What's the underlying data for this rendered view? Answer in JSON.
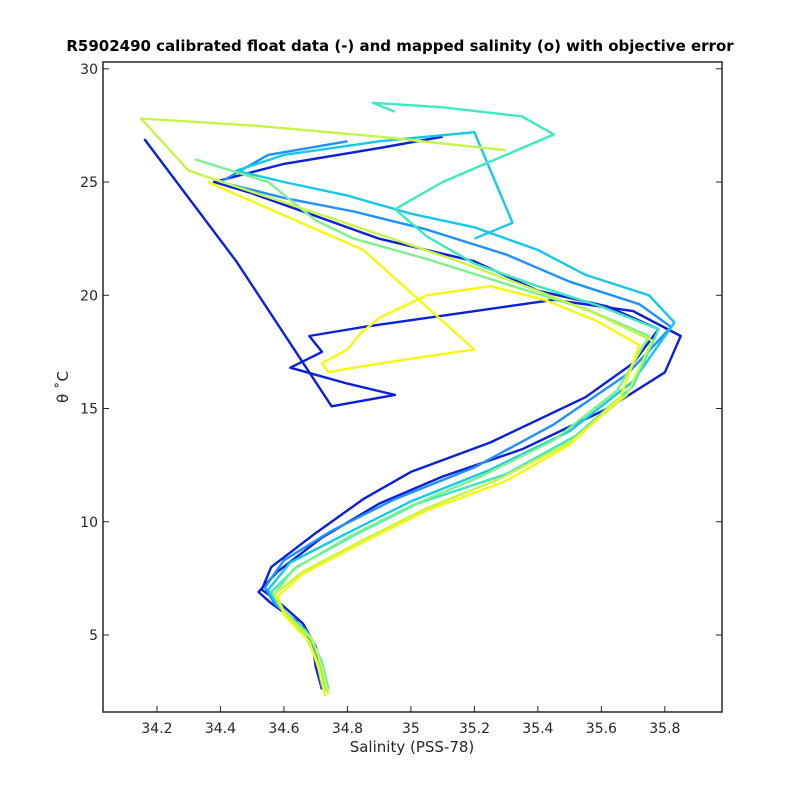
{
  "chart_data": {
    "type": "line",
    "title": "R5902490 calibrated float data (-) and mapped salinity (o) with objective error",
    "xlabel": "Salinity (PSS-78)",
    "ylabel": "θ ˚C",
    "xlim": [
      34.03,
      35.98
    ],
    "ylim": [
      1.6,
      30.3
    ],
    "xticks": [
      "34.2",
      "34.4",
      "34.6",
      "34.8",
      "35",
      "35.2",
      "35.4",
      "35.6",
      "35.8"
    ],
    "yticks": [
      "5",
      "10",
      "15",
      "20",
      "25",
      "30"
    ],
    "grid": false,
    "legend": "none",
    "colormap": [
      "#0a1fd8",
      "#1e90ff",
      "#17c8e8",
      "#3ee8c0",
      "#7cf28a",
      "#c6f548",
      "#f6f80e"
    ],
    "series": [
      {
        "color": "#0a1fd8",
        "x": [
          34.73,
          34.71,
          34.7,
          34.66,
          34.58,
          34.53,
          34.56,
          34.7,
          34.85,
          35.0,
          35.25,
          35.55,
          35.7,
          35.78,
          35.62,
          35.4,
          35.2,
          34.9,
          34.7,
          34.5,
          34.38,
          34.6,
          34.9,
          35.1
        ],
        "y": [
          2.5,
          3.5,
          4.5,
          5.5,
          6.5,
          7.0,
          8.0,
          9.5,
          11.0,
          12.2,
          13.5,
          15.5,
          17.0,
          18.5,
          19.5,
          20.2,
          21.5,
          22.5,
          23.5,
          24.5,
          25.0,
          25.8,
          26.5,
          27.0
        ]
      },
      {
        "color": "#0a1fd8",
        "x": [
          34.72,
          34.7,
          34.69,
          34.64,
          34.56,
          34.52,
          34.58,
          34.72,
          34.9,
          35.1,
          35.35,
          35.62,
          35.8,
          35.85,
          35.7,
          35.45,
          35.15,
          34.85,
          34.68,
          34.72,
          34.62,
          34.8,
          34.95,
          34.75,
          34.45,
          34.16
        ],
        "y": [
          2.6,
          3.6,
          4.6,
          5.6,
          6.4,
          6.9,
          7.8,
          9.3,
          10.8,
          12.0,
          13.2,
          15.0,
          16.6,
          18.2,
          19.3,
          19.8,
          19.2,
          18.6,
          18.2,
          17.5,
          16.8,
          16.1,
          15.6,
          15.1,
          21.5,
          26.9
        ]
      },
      {
        "color": "#1e90ff",
        "x": [
          34.72,
          34.7,
          34.66,
          34.57,
          34.54,
          34.6,
          34.75,
          34.95,
          35.2,
          35.45,
          35.68,
          35.82,
          35.72,
          35.5,
          35.3,
          35.05,
          34.82,
          34.6,
          34.4,
          34.55,
          34.8
        ],
        "y": [
          2.7,
          4.0,
          5.3,
          6.4,
          7.1,
          8.3,
          9.6,
          11.0,
          12.4,
          14.3,
          16.5,
          18.6,
          19.6,
          20.6,
          21.8,
          22.9,
          23.7,
          24.3,
          25.0,
          26.2,
          26.8
        ]
      },
      {
        "color": "#17c8e8",
        "x": [
          34.73,
          34.71,
          34.67,
          34.58,
          34.55,
          34.62,
          34.8,
          35.0,
          35.25,
          35.5,
          35.7,
          35.83,
          35.75,
          35.55,
          35.4,
          35.2,
          35.0,
          34.8,
          34.6,
          34.45,
          34.6,
          34.9,
          35.2,
          35.32,
          35.2
        ],
        "y": [
          2.8,
          4.0,
          5.2,
          6.3,
          7.0,
          8.2,
          9.5,
          10.9,
          12.3,
          14.0,
          16.2,
          18.8,
          20.0,
          20.9,
          22.0,
          23.0,
          23.6,
          24.4,
          25.0,
          25.5,
          26.2,
          26.8,
          27.2,
          23.2,
          22.5
        ]
      },
      {
        "color": "#3ee8c0",
        "x": [
          34.74,
          34.72,
          34.68,
          34.59,
          34.56,
          34.64,
          34.82,
          35.02,
          35.3,
          35.52,
          35.7,
          35.78,
          35.6,
          35.4,
          35.2,
          35.05,
          34.95,
          35.1,
          35.3,
          35.45,
          35.35,
          35.1,
          34.88,
          34.95
        ],
        "y": [
          2.6,
          3.8,
          5.0,
          6.2,
          6.9,
          8.0,
          9.4,
          10.8,
          12.1,
          13.8,
          16.0,
          18.5,
          19.5,
          20.4,
          21.4,
          22.6,
          23.8,
          25.0,
          26.2,
          27.1,
          27.9,
          28.3,
          28.5,
          28.1
        ]
      },
      {
        "color": "#7cf28a",
        "x": [
          34.73,
          34.71,
          34.67,
          34.6,
          34.57,
          34.63,
          34.8,
          35.0,
          35.22,
          35.45,
          35.65,
          35.75,
          35.55,
          35.3,
          35.05,
          34.82,
          34.7,
          34.55,
          34.32
        ],
        "y": [
          2.5,
          3.7,
          4.9,
          6.1,
          6.8,
          7.9,
          9.3,
          10.7,
          12.0,
          13.6,
          15.8,
          18.2,
          19.4,
          20.5,
          21.6,
          22.5,
          23.3,
          25.0,
          26.0
        ]
      },
      {
        "color": "#c6f548",
        "x": [
          34.74,
          34.72,
          34.69,
          34.6,
          34.57,
          34.66,
          34.85,
          35.05,
          35.28,
          35.5,
          35.68,
          35.76,
          35.58,
          35.38,
          35.15,
          34.92,
          34.75,
          34.6,
          34.45,
          34.3,
          34.15,
          34.5,
          34.9,
          35.3
        ],
        "y": [
          2.4,
          3.6,
          4.8,
          6.0,
          6.8,
          7.8,
          9.2,
          10.6,
          11.9,
          13.5,
          15.6,
          18.0,
          19.2,
          20.3,
          21.5,
          22.6,
          23.4,
          24.1,
          24.8,
          25.5,
          27.8,
          27.5,
          27.0,
          26.4
        ]
      },
      {
        "color": "#f6f80e",
        "x": [
          34.73,
          34.71,
          34.68,
          34.6,
          34.58,
          34.66,
          34.85,
          35.05,
          35.3,
          35.5,
          35.66,
          35.72,
          35.58,
          35.42,
          35.25,
          35.05,
          34.9,
          34.84,
          34.8,
          34.72,
          34.74,
          34.82,
          35.0,
          35.2,
          34.85,
          34.36
        ],
        "y": [
          2.3,
          3.5,
          4.7,
          5.9,
          6.7,
          7.7,
          9.1,
          10.5,
          11.8,
          13.4,
          15.5,
          17.8,
          18.9,
          19.8,
          20.4,
          20.0,
          19.0,
          18.3,
          17.6,
          17.0,
          16.6,
          16.8,
          17.2,
          17.6,
          22.0,
          25.0
        ]
      }
    ]
  }
}
